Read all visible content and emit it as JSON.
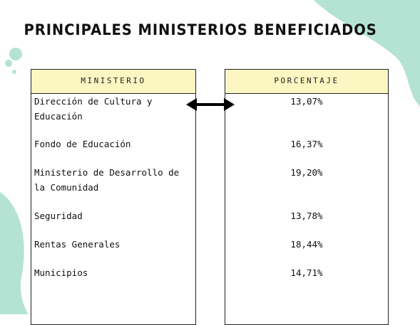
{
  "title": "PRINCIPALES MINISTERIOS BENEFICIADOS",
  "table": {
    "headers": [
      "MINISTERIO",
      "PORCENTAJE"
    ],
    "rows": [
      [
        "Dirección de Cultura y Educación",
        "13,07%"
      ],
      [
        "Fondo de Educación",
        "16,37%"
      ],
      [
        "Ministerio de Desarrollo de la Comunidad",
        "19,20%"
      ],
      [
        "Seguridad",
        "13,78%"
      ],
      [
        "Rentas Generales",
        "18,44%"
      ],
      [
        "Municipios",
        "14,71%"
      ]
    ]
  }
}
